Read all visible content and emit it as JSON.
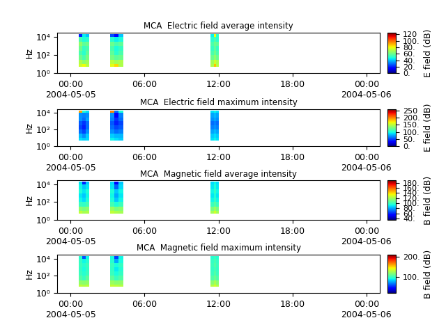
{
  "chart_data": [
    {
      "type": "heatmap",
      "title": "MCA  Electric field average intensity",
      "ylabel": "Hz",
      "log": "y",
      "xlim": [
        -1.1,
        25.1
      ],
      "xticks": [
        {
          "value": 0,
          "label": "00:00\n2004-05-05"
        },
        {
          "value": 6,
          "label": "06:00"
        },
        {
          "value": 12,
          "label": "12:00"
        },
        {
          "value": 18,
          "label": "18:00"
        },
        {
          "value": 24,
          "label": "00:00\n2004-05-06"
        }
      ],
      "ylim": [
        1,
        28000
      ],
      "yticks": [
        {
          "value": 1,
          "label": "10⁰"
        },
        {
          "value": 100,
          "label": "10²"
        },
        {
          "value": 10000,
          "label": "10⁴"
        }
      ],
      "freq_edges": [
        5,
        10,
        30,
        100,
        300,
        1000,
        3000,
        10000,
        20000
      ],
      "segments": [
        {
          "t": [
            0.63,
            0.92,
            1.2,
            1.48
          ],
          "cells": [
            [
              75,
              80,
              72
            ],
            [
              70,
              65,
              68
            ],
            [
              60,
              55,
              62
            ],
            [
              55,
              50,
              58
            ],
            [
              60,
              52,
              55
            ],
            [
              65,
              58,
              60
            ],
            [
              55,
              48,
              50
            ],
            [
              20,
              45,
              40
            ]
          ]
        },
        {
          "t": [
            3.2,
            3.55,
            3.9,
            4.26
          ],
          "cells": [
            [
              78,
              85,
              70
            ],
            [
              72,
              68,
              70
            ],
            [
              62,
              58,
              60
            ],
            [
              58,
              50,
              55
            ],
            [
              55,
              48,
              52
            ],
            [
              60,
              55,
              58
            ],
            [
              50,
              45,
              48
            ],
            [
              25,
              15,
              40
            ]
          ]
        },
        {
          "t": [
            11.36,
            11.6,
            11.82,
            12.05
          ],
          "cells": [
            [
              70,
              88,
              72
            ],
            [
              68,
              75,
              70
            ],
            [
              60,
              65,
              60
            ],
            [
              55,
              60,
              55
            ],
            [
              52,
              58,
              52
            ],
            [
              55,
              60,
              58
            ],
            [
              50,
              55,
              50
            ],
            [
              45,
              80,
              50
            ]
          ]
        }
      ],
      "colorbar": {
        "label": "E field (dB)",
        "range": [
          0,
          125
        ],
        "ticks": [
          {
            "value": 0,
            "label": "0."
          },
          {
            "value": 20,
            "label": "20."
          },
          {
            "value": 40,
            "label": "40."
          },
          {
            "value": 60,
            "label": "60."
          },
          {
            "value": 80,
            "label": "80."
          },
          {
            "value": 100,
            "label": "100."
          },
          120
        ]
      }
    },
    {
      "type": "heatmap",
      "title": "MCA  Electric field maximum intensity",
      "ylabel": "Hz",
      "log": "y",
      "xlim": [
        -1.1,
        25.1
      ],
      "xticks": [
        {
          "value": 0,
          "label": "00:00\n2004-05-05"
        },
        {
          "value": 6,
          "label": "06:00"
        },
        {
          "value": 12,
          "label": "12:00"
        },
        {
          "value": 18,
          "label": "18:00"
        },
        {
          "value": 24,
          "label": "00:00\n2004-05-06"
        }
      ],
      "ylim": [
        1,
        28000
      ],
      "yticks": [
        {
          "value": 1,
          "label": "10⁰"
        },
        {
          "value": 100,
          "label": "10²"
        },
        {
          "value": 10000,
          "label": "10⁴"
        }
      ],
      "freq_edges": [
        5,
        10,
        30,
        100,
        300,
        1000,
        3000,
        10000,
        20000
      ],
      "segments": [
        {
          "t": [
            0.63,
            0.92,
            1.2,
            1.48
          ],
          "cells": [
            [
              90,
              85,
              88
            ],
            [
              80,
              70,
              85
            ],
            [
              60,
              50,
              70
            ],
            [
              50,
              40,
              60
            ],
            [
              55,
              45,
              60
            ],
            [
              70,
              60,
              75
            ],
            [
              70,
              65,
              70
            ],
            [
              190,
              100,
              90
            ]
          ]
        },
        {
          "t": [
            3.2,
            3.55,
            3.9,
            4.26
          ],
          "cells": [
            [
              95,
              90,
              85
            ],
            [
              85,
              80,
              80
            ],
            [
              70,
              60,
              65
            ],
            [
              60,
              50,
              55
            ],
            [
              55,
              40,
              50
            ],
            [
              65,
              45,
              60
            ],
            [
              70,
              30,
              65
            ],
            [
              200,
              60,
              100
            ]
          ]
        },
        {
          "t": [
            11.36,
            11.6,
            11.82,
            12.05
          ],
          "cells": [
            [
              90,
              95,
              90
            ],
            [
              85,
              90,
              85
            ],
            [
              75,
              80,
              75
            ],
            [
              65,
              70,
              65
            ],
            [
              60,
              65,
              60
            ],
            [
              70,
              75,
              70
            ],
            [
              75,
              80,
              75
            ],
            [
              90,
              95,
              90
            ]
          ]
        }
      ],
      "colorbar": {
        "label": "E field (dB)",
        "range": [
          0,
          260
        ],
        "ticks": [
          {
            "value": 0,
            "label": "0."
          },
          {
            "value": 50,
            "label": "50."
          },
          {
            "value": 100,
            "label": "100."
          },
          {
            "value": 150,
            "label": "150."
          },
          {
            "value": 200,
            "label": "200."
          },
          250
        ]
      }
    },
    {
      "type": "heatmap",
      "title": "MCA  Magnetic field average intensity",
      "ylabel": "Hz",
      "log": "y",
      "xlim": [
        -1.1,
        25.1
      ],
      "xticks": [
        {
          "value": 0,
          "label": "00:00\n2004-05-05"
        },
        {
          "value": 6,
          "label": "06:00"
        },
        {
          "value": 12,
          "label": "12:00"
        },
        {
          "value": 18,
          "label": "18:00"
        },
        {
          "value": 24,
          "label": "00:00\n2004-05-06"
        }
      ],
      "ylim": [
        1,
        28000
      ],
      "yticks": [
        {
          "value": 1,
          "label": "10⁰"
        },
        {
          "value": 100,
          "label": "10²"
        },
        {
          "value": 10000,
          "label": "10⁴"
        }
      ],
      "freq_edges": [
        5,
        10,
        30,
        100,
        300,
        1000,
        3000,
        10000,
        20000
      ],
      "segments": [
        {
          "t": [
            0.63,
            0.92,
            1.2,
            1.48
          ],
          "cells": [
            [
              125,
              120,
              122
            ],
            [
              115,
              112,
              115
            ],
            [
              100,
              98,
              102
            ],
            [
              92,
              88,
              95
            ],
            [
              90,
              85,
              92
            ],
            [
              95,
              90,
              95
            ],
            [
              92,
              85,
              90
            ],
            [
              90,
              60,
              85
            ]
          ]
        },
        {
          "t": [
            3.2,
            3.55,
            3.9,
            4.26
          ],
          "cells": [
            [
              125,
              122,
              120
            ],
            [
              118,
              112,
              115
            ],
            [
              102,
              95,
              100
            ],
            [
              95,
              85,
              92
            ],
            [
              92,
              80,
              90
            ],
            [
              95,
              85,
              92
            ],
            [
              90,
              70,
              88
            ],
            [
              88,
              55,
              85
            ]
          ]
        },
        {
          "t": [
            11.36,
            11.6,
            11.82,
            12.05
          ],
          "cells": [
            [
              120,
              128,
              120
            ],
            [
              112,
              118,
              112
            ],
            [
              100,
              105,
              100
            ],
            [
              92,
              98,
              92
            ],
            [
              90,
              95,
              90
            ],
            [
              92,
              98,
              92
            ],
            [
              90,
              95,
              90
            ],
            [
              88,
              92,
              88
            ]
          ]
        }
      ],
      "colorbar": {
        "label": "B field (dB)",
        "range": [
          35,
          190
        ],
        "ticks": [
          {
            "value": 40,
            "label": "40."
          },
          {
            "value": 60,
            "label": "60."
          },
          {
            "value": 80,
            "label": "80."
          },
          {
            "value": 100,
            "label": "100."
          },
          {
            "value": 120,
            "label": "120."
          },
          {
            "value": 140,
            "label": "140."
          },
          {
            "value": 160,
            "label": "160."
          },
          {
            "value": 180,
            "label": "180."
          }
        ]
      }
    },
    {
      "type": "heatmap",
      "title": "MCA  Magnetic field maximum intensity",
      "ylabel": "Hz",
      "log": "y",
      "xlim": [
        -1.1,
        25.1
      ],
      "xticks": [
        {
          "value": 0,
          "label": "00:00\n2004-05-05"
        },
        {
          "value": 6,
          "label": "06:00"
        },
        {
          "value": 12,
          "label": "12:00"
        },
        {
          "value": 18,
          "label": "18:00"
        },
        {
          "value": 24,
          "label": "00:00\n2004-05-06"
        }
      ],
      "ylim": [
        1,
        28000
      ],
      "yticks": [
        {
          "value": 1,
          "label": "10⁰"
        },
        {
          "value": 100,
          "label": "10²"
        },
        {
          "value": 10000,
          "label": "10⁴"
        }
      ],
      "freq_edges": [
        5,
        10,
        30,
        100,
        300,
        1000,
        3000,
        10000,
        20000
      ],
      "segments": [
        {
          "t": [
            0.63,
            0.92,
            1.2,
            1.48
          ],
          "cells": [
            [
              130,
              128,
              130
            ],
            [
              120,
              118,
              120
            ],
            [
              105,
              100,
              108
            ],
            [
              100,
              95,
              100
            ],
            [
              98,
              92,
              98
            ],
            [
              100,
              95,
              100
            ],
            [
              98,
              90,
              95
            ],
            [
              95,
              60,
              90
            ]
          ]
        },
        {
          "t": [
            3.2,
            3.55,
            3.9,
            4.26
          ],
          "cells": [
            [
              132,
              130,
              128
            ],
            [
              122,
              118,
              120
            ],
            [
              108,
              100,
              105
            ],
            [
              100,
              92,
              98
            ],
            [
              98,
              88,
              95
            ],
            [
              100,
              92,
              98
            ],
            [
              95,
              75,
              92
            ],
            [
              92,
              55,
              90
            ]
          ]
        },
        {
          "t": [
            11.36,
            11.6,
            11.82,
            12.05
          ],
          "cells": [
            [
              128,
              135,
              128
            ],
            [
              118,
              125,
              118
            ],
            [
              105,
              110,
              105
            ],
            [
              100,
              105,
              100
            ],
            [
              98,
              102,
              98
            ],
            [
              100,
              105,
              100
            ],
            [
              98,
              102,
              98
            ],
            [
              95,
              100,
              95
            ]
          ]
        }
      ],
      "colorbar": {
        "label": "B field (dB)",
        "range": [
          20,
          210
        ],
        "ticks": [
          {
            "value": 100,
            "label": "100."
          },
          {
            "value": 200,
            "label": "200."
          }
        ]
      }
    }
  ]
}
